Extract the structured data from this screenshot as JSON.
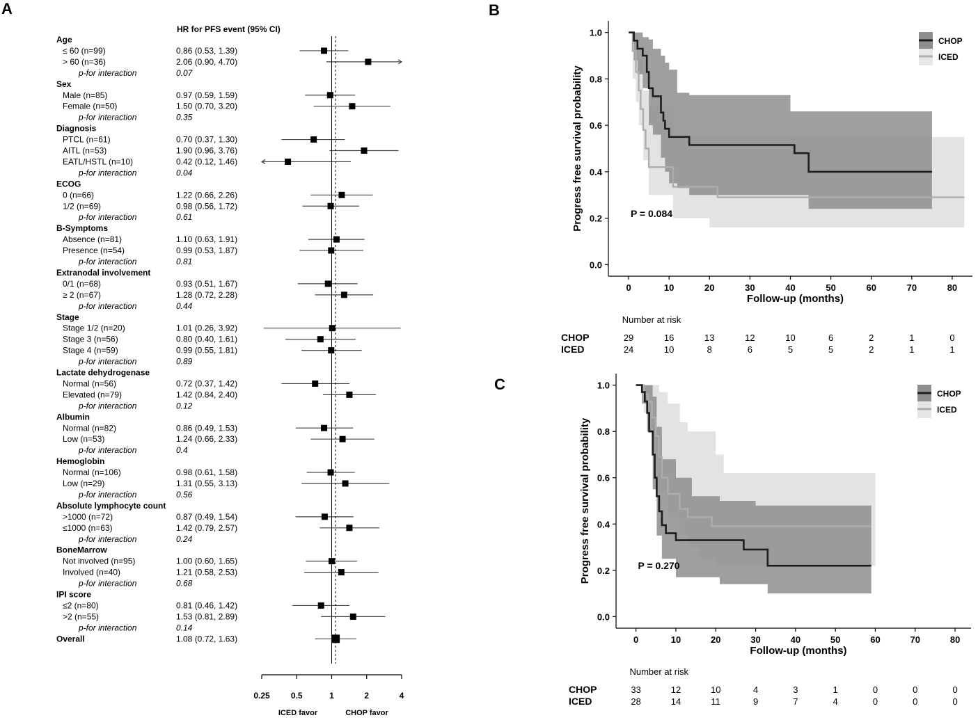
{
  "panels": {
    "a": "A",
    "b": "B",
    "c": "C"
  },
  "chart_data": [
    {
      "type": "forest",
      "panel": "A",
      "title": "HR for PFS event (95% CI)",
      "xscale": "log2",
      "xlim": [
        0.25,
        4
      ],
      "xticks": [
        "0.25",
        "0.5",
        "1",
        "2",
        "4"
      ],
      "reference_line": 1,
      "overall_line": 1.08,
      "left_favor": "ICED favor",
      "right_favor": "CHOP favor",
      "groups": [
        {
          "name": "Age",
          "rows": [
            {
              "label": "≤ 60 (n=99)",
              "text": "0.86 (0.53, 1.39)",
              "hr": 0.86,
              "lo": 0.53,
              "hi": 1.39
            },
            {
              "label": "> 60 (n=36)",
              "text": "2.06 (0.90, 4.70)",
              "hr": 2.06,
              "lo": 0.9,
              "hi": 4.7
            }
          ],
          "p_label": "p-for interaction",
          "p": "0.07"
        },
        {
          "name": "Sex",
          "rows": [
            {
              "label": "Male (n=85)",
              "text": "0.97 (0.59, 1.59)",
              "hr": 0.97,
              "lo": 0.59,
              "hi": 1.59
            },
            {
              "label": "Female (n=50)",
              "text": "1.50 (0.70, 3.20)",
              "hr": 1.5,
              "lo": 0.7,
              "hi": 3.2
            }
          ],
          "p_label": "p-for interaction",
          "p": "0.35"
        },
        {
          "name": "Diagnosis",
          "rows": [
            {
              "label": "PTCL (n=61)",
              "text": "0.70 (0.37, 1.30)",
              "hr": 0.7,
              "lo": 0.37,
              "hi": 1.3
            },
            {
              "label": "AITL (n=53)",
              "text": "1.90 (0.96, 3.76)",
              "hr": 1.9,
              "lo": 0.96,
              "hi": 3.76
            },
            {
              "label": "EATL/HSTL (n=10)",
              "text": "0.42 (0.12, 1.46)",
              "hr": 0.42,
              "lo": 0.12,
              "hi": 1.46
            }
          ],
          "p_label": "p-for interaction",
          "p": "0.04"
        },
        {
          "name": "ECOG",
          "rows": [
            {
              "label": "0 (n=66)",
              "text": "1.22 (0.66, 2.26)",
              "hr": 1.22,
              "lo": 0.66,
              "hi": 2.26
            },
            {
              "label": "1/2 (n=69)",
              "text": "0.98 (0.56, 1.72)",
              "hr": 0.98,
              "lo": 0.56,
              "hi": 1.72
            }
          ],
          "p_label": "p-for interaction",
          "p": "0.61"
        },
        {
          "name": "B-Symptoms",
          "rows": [
            {
              "label": "Absence (n=81)",
              "text": "1.10 (0.63, 1.91)",
              "hr": 1.1,
              "lo": 0.63,
              "hi": 1.91
            },
            {
              "label": "Presence (n=54)",
              "text": "0.99 (0.53, 1.87)",
              "hr": 0.99,
              "lo": 0.53,
              "hi": 1.87
            }
          ],
          "p_label": "p-for interaction",
          "p": "0.81"
        },
        {
          "name": "Extranodal involvement",
          "rows": [
            {
              "label": "0/1 (n=68)",
              "text": "0.93 (0.51, 1.67)",
              "hr": 0.93,
              "lo": 0.51,
              "hi": 1.67
            },
            {
              "label": "≥ 2 (n=67)",
              "text": "1.28 (0.72, 2.28)",
              "hr": 1.28,
              "lo": 0.72,
              "hi": 2.28
            }
          ],
          "p_label": "p-for interaction",
          "p": "0.44"
        },
        {
          "name": "Stage",
          "rows": [
            {
              "label": "Stage 1/2 (n=20)",
              "text": "1.01 (0.26, 3.92)",
              "hr": 1.01,
              "lo": 0.26,
              "hi": 3.92
            },
            {
              "label": "Stage 3 (n=56)",
              "text": "0.80 (0.40, 1.61)",
              "hr": 0.8,
              "lo": 0.4,
              "hi": 1.61
            },
            {
              "label": "Stage 4 (n=59)",
              "text": "0.99 (0.55, 1.81)",
              "hr": 0.99,
              "lo": 0.55,
              "hi": 1.81
            }
          ],
          "p_label": "p-for interaction",
          "p": "0.89"
        },
        {
          "name": "Lactate dehydrogenase",
          "rows": [
            {
              "label": "Normal (n=56)",
              "text": "0.72 (0.37, 1.42)",
              "hr": 0.72,
              "lo": 0.37,
              "hi": 1.42
            },
            {
              "label": "Elevated (n=79)",
              "text": "1.42 (0.84, 2.40)",
              "hr": 1.42,
              "lo": 0.84,
              "hi": 2.4
            }
          ],
          "p_label": "p-for interaction",
          "p": "0.12"
        },
        {
          "name": "Albumin",
          "rows": [
            {
              "label": "Normal (n=82)",
              "text": "0.86 (0.49, 1.53)",
              "hr": 0.86,
              "lo": 0.49,
              "hi": 1.53
            },
            {
              "label": "Low (n=53)",
              "text": "1.24 (0.66, 2.33)",
              "hr": 1.24,
              "lo": 0.66,
              "hi": 2.33
            }
          ],
          "p_label": "p-for interaction",
          "p": "0.4"
        },
        {
          "name": "Hemoglobin",
          "rows": [
            {
              "label": "Normal (n=106)",
              "text": "0.98 (0.61, 1.58)",
              "hr": 0.98,
              "lo": 0.61,
              "hi": 1.58
            },
            {
              "label": "Low (n=29)",
              "text": "1.31 (0.55, 3.13)",
              "hr": 1.31,
              "lo": 0.55,
              "hi": 3.13
            }
          ],
          "p_label": "p-for interaction",
          "p": "0.56"
        },
        {
          "name": "Absolute lymphocyte count",
          "rows": [
            {
              "label": ">1000 (n=72)",
              "text": "0.87 (0.49, 1.54)",
              "hr": 0.87,
              "lo": 0.49,
              "hi": 1.54
            },
            {
              "label": "≤1000 (n=63)",
              "text": "1.42 (0.79, 2.57)",
              "hr": 1.42,
              "lo": 0.79,
              "hi": 2.57
            }
          ],
          "p_label": "p-for interaction",
          "p": "0.24"
        },
        {
          "name": "BoneMarrow",
          "rows": [
            {
              "label": "Not involved (n=95)",
              "text": "1.00 (0.60, 1.65)",
              "hr": 1.0,
              "lo": 0.6,
              "hi": 1.65
            },
            {
              "label": "Involved (n=40)",
              "text": "1.21 (0.58, 2.53)",
              "hr": 1.21,
              "lo": 0.58,
              "hi": 2.53
            }
          ],
          "p_label": "p-for interaction",
          "p": "0.68"
        },
        {
          "name": "IPI score",
          "rows": [
            {
              "label": "≤2 (n=80)",
              "text": "0.81 (0.46, 1.42)",
              "hr": 0.81,
              "lo": 0.46,
              "hi": 1.42
            },
            {
              "label": ">2 (n=55)",
              "text": "1.53 (0.81, 2.89)",
              "hr": 1.53,
              "lo": 0.81,
              "hi": 2.89
            }
          ],
          "p_label": "p-for interaction",
          "p": "0.14"
        }
      ],
      "overall": {
        "label": "Overall",
        "text": "1.08 (0.72, 1.63)",
        "hr": 1.08,
        "lo": 0.72,
        "hi": 1.63
      }
    },
    {
      "type": "survival",
      "panel": "B",
      "ylabel": "Progress free survival probability",
      "xlabel": "Follow-up (months)",
      "xlim": [
        -5,
        85
      ],
      "ylim": [
        -0.05,
        1.05
      ],
      "xticks": [
        0,
        10,
        20,
        30,
        40,
        50,
        60,
        70,
        80
      ],
      "yticks": [
        "0.0",
        "0.2",
        "0.4",
        "0.6",
        "0.8",
        "1.0"
      ],
      "pvalue": "P = 0.084",
      "legend": [
        "CHOP",
        "ICED"
      ],
      "series": [
        {
          "name": "CHOP",
          "steps": [
            [
              0,
              1.0
            ],
            [
              1.3,
              0.965
            ],
            [
              2.2,
              0.93
            ],
            [
              3.5,
              0.9
            ],
            [
              4.5,
              0.83
            ],
            [
              5,
              0.76
            ],
            [
              6,
              0.725
            ],
            [
              8,
              0.655
            ],
            [
              8.6,
              0.62
            ],
            [
              9,
              0.585
            ],
            [
              10,
              0.55
            ],
            [
              15,
              0.515
            ],
            [
              41,
              0.48
            ],
            [
              44.5,
              0.4
            ]
          ],
          "end": 75,
          "band": [
            [
              0,
              1.0,
              1.0
            ],
            [
              1.3,
              1.0,
              0.88
            ],
            [
              2.2,
              1.0,
              0.82
            ],
            [
              3.5,
              0.98,
              0.76
            ],
            [
              5,
              0.97,
              0.6
            ],
            [
              6,
              0.93,
              0.56
            ],
            [
              8,
              0.9,
              0.46
            ],
            [
              9,
              0.87,
              0.4
            ],
            [
              10,
              0.84,
              0.35
            ],
            [
              12,
              0.74,
              0.33
            ],
            [
              15,
              0.73,
              0.3
            ],
            [
              40,
              0.66,
              0.3
            ],
            [
              44.5,
              0.66,
              0.24
            ]
          ],
          "band_end": 75
        },
        {
          "name": "ICED",
          "steps": [
            [
              0,
              1.0
            ],
            [
              1,
              0.92
            ],
            [
              1.8,
              0.83
            ],
            [
              2.5,
              0.75
            ],
            [
              3,
              0.67
            ],
            [
              3.6,
              0.58
            ],
            [
              4.2,
              0.5
            ],
            [
              5,
              0.42
            ],
            [
              11,
              0.335
            ],
            [
              22,
              0.29
            ]
          ],
          "end": 83,
          "band": [
            [
              0,
              1.0,
              1.0
            ],
            [
              1,
              1.0,
              0.8
            ],
            [
              1.8,
              0.97,
              0.7
            ],
            [
              2.5,
              0.88,
              0.6
            ],
            [
              3.6,
              0.75,
              0.45
            ],
            [
              5,
              0.68,
              0.3
            ],
            [
              11,
              0.55,
              0.2
            ],
            [
              20,
              0.55,
              0.16
            ]
          ],
          "band_end": 83
        }
      ],
      "risk_label": "Number at risk",
      "risk_times": [
        0,
        10,
        20,
        30,
        40,
        50,
        60,
        70,
        80
      ],
      "risk_table": [
        {
          "name": "CHOP",
          "values": [
            "29",
            "16",
            "13",
            "12",
            "10",
            "6",
            "2",
            "1",
            "0"
          ]
        },
        {
          "name": "ICED",
          "values": [
            "24",
            "10",
            "8",
            "6",
            "5",
            "5",
            "2",
            "1",
            "1"
          ]
        }
      ]
    },
    {
      "type": "survival",
      "panel": "C",
      "ylabel": "Progress free survival probability",
      "xlabel": "Follow-up (months)",
      "xlim": [
        -5,
        84
      ],
      "ylim": [
        -0.05,
        1.05
      ],
      "xticks": [
        0,
        10,
        20,
        30,
        40,
        50,
        60,
        70,
        80
      ],
      "yticks": [
        "0.0",
        "0.2",
        "0.4",
        "0.6",
        "0.8",
        "1.0"
      ],
      "pvalue": "P = 0.270",
      "legend": [
        "CHOP",
        "ICED"
      ],
      "series": [
        {
          "name": "CHOP",
          "steps": [
            [
              0,
              1.0
            ],
            [
              1.5,
              0.97
            ],
            [
              2.2,
              0.93
            ],
            [
              2.8,
              0.88
            ],
            [
              3.3,
              0.8
            ],
            [
              4.2,
              0.7
            ],
            [
              4.7,
              0.6
            ],
            [
              5.2,
              0.52
            ],
            [
              5.8,
              0.455
            ],
            [
              6.5,
              0.395
            ],
            [
              7.5,
              0.36
            ],
            [
              10,
              0.33
            ],
            [
              21,
              0.33
            ],
            [
              27,
              0.29
            ],
            [
              33,
              0.22
            ]
          ],
          "end": 59,
          "band": [
            [
              0,
              1.0,
              1.0
            ],
            [
              1.5,
              1.0,
              0.92
            ],
            [
              2.8,
              1.0,
              0.8
            ],
            [
              4.2,
              0.95,
              0.55
            ],
            [
              5.2,
              0.82,
              0.35
            ],
            [
              6.5,
              0.68,
              0.25
            ],
            [
              10,
              0.6,
              0.17
            ],
            [
              14,
              0.52,
              0.17
            ],
            [
              21,
              0.5,
              0.14
            ],
            [
              30,
              0.48,
              0.14
            ],
            [
              33,
              0.48,
              0.1
            ]
          ],
          "band_end": 59
        },
        {
          "name": "ICED",
          "steps": [
            [
              0,
              1.0
            ],
            [
              2,
              0.96
            ],
            [
              3,
              0.93
            ],
            [
              4,
              0.86
            ],
            [
              5,
              0.78
            ],
            [
              5.8,
              0.69
            ],
            [
              6.5,
              0.6
            ],
            [
              8,
              0.53
            ],
            [
              11,
              0.465
            ],
            [
              13,
              0.43
            ],
            [
              19,
              0.39
            ]
          ],
          "end": 59,
          "band": [
            [
              0,
              1.0,
              1.0
            ],
            [
              2,
              1.0,
              0.88
            ],
            [
              4,
              1.0,
              0.72
            ],
            [
              5.8,
              0.97,
              0.54
            ],
            [
              8,
              0.92,
              0.43
            ],
            [
              11,
              0.84,
              0.35
            ],
            [
              13,
              0.8,
              0.3
            ],
            [
              16,
              0.8,
              0.25
            ],
            [
              20,
              0.7,
              0.22
            ],
            [
              22,
              0.62,
              0.22
            ]
          ],
          "band_end": 60
        }
      ],
      "risk_label": "Number at risk",
      "risk_times": [
        0,
        10,
        20,
        30,
        40,
        50,
        60,
        70,
        80
      ],
      "risk_table": [
        {
          "name": "CHOP",
          "values": [
            "33",
            "12",
            "10",
            "4",
            "3",
            "1",
            "0",
            "0",
            "0"
          ]
        },
        {
          "name": "ICED",
          "values": [
            "28",
            "14",
            "11",
            "9",
            "7",
            "4",
            "0",
            "0",
            "0"
          ]
        }
      ]
    }
  ]
}
